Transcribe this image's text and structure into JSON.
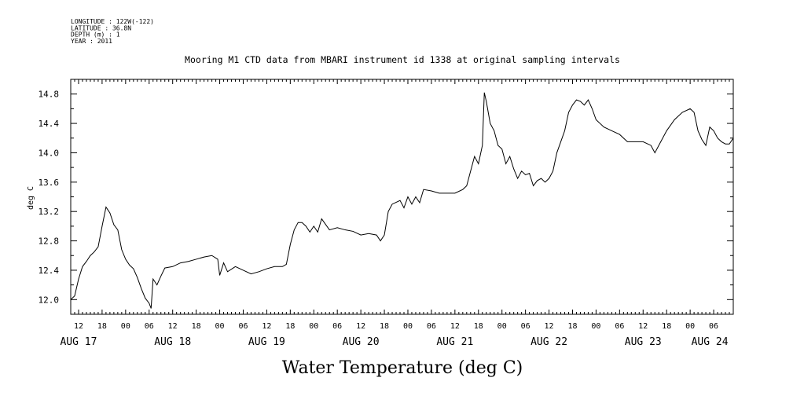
{
  "header": {
    "lines": [
      "LONGITUDE : 122W(-122)",
      "LATITUDE : 36.8N",
      "DEPTH (m) : 1",
      "YEAR : 2011"
    ]
  },
  "chart_data": {
    "type": "line",
    "title": "Mooring M1 CTD data from MBARI instrument id 1338 at original sampling intervals",
    "xlabel": "Water Temperature (deg C)",
    "ylabel": "deg C",
    "ylim": [
      11.8,
      15.0
    ],
    "yticks": [
      12.0,
      12.4,
      12.8,
      13.2,
      13.6,
      14.0,
      14.4,
      14.8
    ],
    "ytick_labels": [
      "12.0",
      "12.4",
      "12.8",
      "13.2",
      "13.6",
      "14.0",
      "14.4",
      "14.8"
    ],
    "x_axis": {
      "start": "AUG 17 10:00",
      "end": "AUG 24 11:00",
      "hour_ticks": [
        "12",
        "18",
        "00",
        "06",
        "12",
        "18",
        "00",
        "06",
        "12",
        "18",
        "00",
        "06",
        "12",
        "18",
        "00",
        "06",
        "12",
        "18",
        "00",
        "06",
        "12",
        "18",
        "00",
        "06",
        "12",
        "18",
        "00",
        "06",
        "12",
        "18",
        "00",
        "06"
      ],
      "day_labels": [
        "AUG 17",
        "AUG 18",
        "AUG 19",
        "AUG 20",
        "AUG 21",
        "AUG 22",
        "AUG 23",
        "AUG 24"
      ]
    },
    "grid": false,
    "series": [
      {
        "color": "#000000",
        "points": [
          [
            "AUG 17 10:00",
            12.0
          ],
          [
            "AUG 17 11:00",
            12.05
          ],
          [
            "AUG 17 12:00",
            12.28
          ],
          [
            "AUG 17 13:00",
            12.45
          ],
          [
            "AUG 17 14:00",
            12.52
          ],
          [
            "AUG 17 15:00",
            12.6
          ],
          [
            "AUG 17 16:00",
            12.65
          ],
          [
            "AUG 17 17:00",
            12.72
          ],
          [
            "AUG 17 18:00",
            13.0
          ],
          [
            "AUG 17 19:00",
            13.26
          ],
          [
            "AUG 17 20:00",
            13.18
          ],
          [
            "AUG 17 21:00",
            13.02
          ],
          [
            "AUG 17 22:00",
            12.95
          ],
          [
            "AUG 17 23:00",
            12.68
          ],
          [
            "AUG 18 00:00",
            12.55
          ],
          [
            "AUG 18 01:00",
            12.47
          ],
          [
            "AUG 18 02:00",
            12.42
          ],
          [
            "AUG 18 03:00",
            12.3
          ],
          [
            "AUG 18 04:00",
            12.15
          ],
          [
            "AUG 18 05:00",
            12.02
          ],
          [
            "AUG 18 06:00",
            11.95
          ],
          [
            "AUG 18 06:30",
            11.88
          ],
          [
            "AUG 18 07:00",
            12.28
          ],
          [
            "AUG 18 08:00",
            12.2
          ],
          [
            "AUG 18 09:00",
            12.32
          ],
          [
            "AUG 18 10:00",
            12.43
          ],
          [
            "AUG 18 12:00",
            12.45
          ],
          [
            "AUG 18 14:00",
            12.5
          ],
          [
            "AUG 18 16:00",
            12.52
          ],
          [
            "AUG 18 18:00",
            12.55
          ],
          [
            "AUG 18 20:00",
            12.58
          ],
          [
            "AUG 18 22:00",
            12.6
          ],
          [
            "AUG 18 23:30",
            12.55
          ],
          [
            "AUG 19 00:00",
            12.33
          ],
          [
            "AUG 19 01:00",
            12.5
          ],
          [
            "AUG 19 02:00",
            12.38
          ],
          [
            "AUG 19 04:00",
            12.45
          ],
          [
            "AUG 19 06:00",
            12.4
          ],
          [
            "AUG 19 08:00",
            12.35
          ],
          [
            "AUG 19 10:00",
            12.38
          ],
          [
            "AUG 19 12:00",
            12.42
          ],
          [
            "AUG 19 14:00",
            12.45
          ],
          [
            "AUG 19 16:00",
            12.45
          ],
          [
            "AUG 19 17:00",
            12.48
          ],
          [
            "AUG 19 18:00",
            12.75
          ],
          [
            "AUG 19 19:00",
            12.95
          ],
          [
            "AUG 19 20:00",
            13.05
          ],
          [
            "AUG 19 21:00",
            13.05
          ],
          [
            "AUG 19 22:00",
            13.0
          ],
          [
            "AUG 19 23:00",
            12.92
          ],
          [
            "AUG 20 00:00",
            13.0
          ],
          [
            "AUG 20 01:00",
            12.92
          ],
          [
            "AUG 20 02:00",
            13.1
          ],
          [
            "AUG 20 04:00",
            12.95
          ],
          [
            "AUG 20 06:00",
            12.98
          ],
          [
            "AUG 20 08:00",
            12.95
          ],
          [
            "AUG 20 10:00",
            12.93
          ],
          [
            "AUG 20 12:00",
            12.88
          ],
          [
            "AUG 20 14:00",
            12.9
          ],
          [
            "AUG 20 16:00",
            12.88
          ],
          [
            "AUG 20 17:00",
            12.8
          ],
          [
            "AUG 20 18:00",
            12.88
          ],
          [
            "AUG 20 19:00",
            13.2
          ],
          [
            "AUG 20 20:00",
            13.3
          ],
          [
            "AUG 20 22:00",
            13.35
          ],
          [
            "AUG 20 23:00",
            13.25
          ],
          [
            "AUG 21 00:00",
            13.4
          ],
          [
            "AUG 21 01:00",
            13.3
          ],
          [
            "AUG 21 02:00",
            13.4
          ],
          [
            "AUG 21 03:00",
            13.32
          ],
          [
            "AUG 21 04:00",
            13.5
          ],
          [
            "AUG 21 06:00",
            13.48
          ],
          [
            "AUG 21 08:00",
            13.45
          ],
          [
            "AUG 21 10:00",
            13.45
          ],
          [
            "AUG 21 12:00",
            13.45
          ],
          [
            "AUG 21 14:00",
            13.5
          ],
          [
            "AUG 21 15:00",
            13.55
          ],
          [
            "AUG 21 16:00",
            13.75
          ],
          [
            "AUG 21 17:00",
            13.95
          ],
          [
            "AUG 21 18:00",
            13.85
          ],
          [
            "AUG 21 19:00",
            14.1
          ],
          [
            "AUG 21 19:30",
            14.82
          ],
          [
            "AUG 21 20:00",
            14.7
          ],
          [
            "AUG 21 21:00",
            14.4
          ],
          [
            "AUG 21 22:00",
            14.3
          ],
          [
            "AUG 21 23:00",
            14.1
          ],
          [
            "AUG 22 00:00",
            14.05
          ],
          [
            "AUG 22 01:00",
            13.85
          ],
          [
            "AUG 22 02:00",
            13.95
          ],
          [
            "AUG 22 03:00",
            13.78
          ],
          [
            "AUG 22 04:00",
            13.65
          ],
          [
            "AUG 22 05:00",
            13.75
          ],
          [
            "AUG 22 06:00",
            13.7
          ],
          [
            "AUG 22 07:00",
            13.72
          ],
          [
            "AUG 22 08:00",
            13.55
          ],
          [
            "AUG 22 09:00",
            13.62
          ],
          [
            "AUG 22 10:00",
            13.65
          ],
          [
            "AUG 22 11:00",
            13.6
          ],
          [
            "AUG 22 12:00",
            13.65
          ],
          [
            "AUG 22 13:00",
            13.75
          ],
          [
            "AUG 22 14:00",
            14.0
          ],
          [
            "AUG 22 15:00",
            14.15
          ],
          [
            "AUG 22 16:00",
            14.3
          ],
          [
            "AUG 22 17:00",
            14.55
          ],
          [
            "AUG 22 18:00",
            14.65
          ],
          [
            "AUG 22 19:00",
            14.72
          ],
          [
            "AUG 22 20:00",
            14.7
          ],
          [
            "AUG 22 21:00",
            14.65
          ],
          [
            "AUG 22 22:00",
            14.72
          ],
          [
            "AUG 22 23:00",
            14.6
          ],
          [
            "AUG 23 00:00",
            14.45
          ],
          [
            "AUG 23 02:00",
            14.35
          ],
          [
            "AUG 23 04:00",
            14.3
          ],
          [
            "AUG 23 06:00",
            14.25
          ],
          [
            "AUG 23 08:00",
            14.15
          ],
          [
            "AUG 23 10:00",
            14.15
          ],
          [
            "AUG 23 12:00",
            14.15
          ],
          [
            "AUG 23 14:00",
            14.1
          ],
          [
            "AUG 23 15:00",
            14.0
          ],
          [
            "AUG 23 16:00",
            14.1
          ],
          [
            "AUG 23 18:00",
            14.3
          ],
          [
            "AUG 23 20:00",
            14.45
          ],
          [
            "AUG 23 22:00",
            14.55
          ],
          [
            "AUG 24 00:00",
            14.6
          ],
          [
            "AUG 24 01:00",
            14.55
          ],
          [
            "AUG 24 02:00",
            14.3
          ],
          [
            "AUG 24 03:00",
            14.18
          ],
          [
            "AUG 24 04:00",
            14.1
          ],
          [
            "AUG 24 05:00",
            14.35
          ],
          [
            "AUG 24 06:00",
            14.3
          ],
          [
            "AUG 24 07:00",
            14.2
          ],
          [
            "AUG 24 08:00",
            14.15
          ],
          [
            "AUG 24 09:00",
            14.12
          ],
          [
            "AUG 24 10:00",
            14.12
          ],
          [
            "AUG 24 11:00",
            14.2
          ]
        ]
      }
    ]
  }
}
